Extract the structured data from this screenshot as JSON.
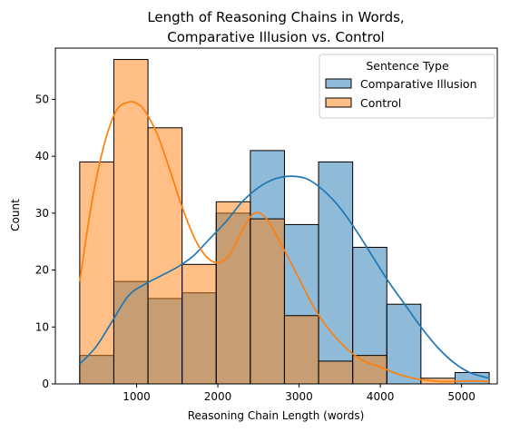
{
  "chart_data": {
    "type": "histogram",
    "title_lines": [
      "Length of Reasoning Chains in Words,",
      "Comparative Illusion vs. Control"
    ],
    "xlabel": "Reasoning Chain Length (words)",
    "ylabel": "Count",
    "xlim": [
      0,
      5440
    ],
    "ylim": [
      0,
      59
    ],
    "xticks": [
      1000,
      2000,
      3000,
      4000,
      5000
    ],
    "yticks": [
      0,
      10,
      20,
      30,
      40,
      50
    ],
    "bin_edges": [
      300,
      720,
      1140,
      1560,
      1980,
      2400,
      2820,
      3240,
      3660,
      4080,
      4500,
      4920,
      5340
    ],
    "grid": false,
    "legend": {
      "title": "Sentence Type",
      "placement": "top-right"
    },
    "series": [
      {
        "name": "Comparative Illusion",
        "color": "#1f77b4",
        "counts": [
          5,
          18,
          15,
          16,
          30,
          41,
          28,
          39,
          24,
          14,
          0,
          2
        ],
        "kde": {
          "x": [
            300,
            500,
            700,
            900,
            1100,
            1300,
            1500,
            1700,
            1900,
            2100,
            2300,
            2500,
            2700,
            2900,
            3100,
            3300,
            3500,
            3700,
            3900,
            4100,
            4300,
            4500,
            4700,
            4900,
            5100,
            5340
          ],
          "y": [
            3.5,
            6.5,
            11,
            15.5,
            17.5,
            19,
            20.5,
            22.5,
            25.5,
            28.5,
            32,
            34.5,
            36,
            36.5,
            36,
            34,
            31,
            27,
            22.5,
            18,
            14,
            10,
            6.5,
            3.8,
            2,
            1
          ]
        }
      },
      {
        "name": "Control",
        "color": "#ff7f0e",
        "counts": [
          39,
          57,
          45,
          21,
          32,
          29,
          12,
          4,
          5,
          0,
          1,
          0
        ],
        "kde": {
          "x": [
            300,
            450,
            600,
            750,
            900,
            1000,
            1100,
            1250,
            1400,
            1550,
            1700,
            1850,
            2000,
            2150,
            2300,
            2450,
            2600,
            2800,
            3000,
            3200,
            3400,
            3600,
            3800,
            4000,
            4200,
            4400,
            4600,
            4800,
            5000,
            5200,
            5340
          ],
          "y": [
            18,
            32,
            42,
            48,
            49.5,
            49.3,
            48,
            44,
            38,
            31.5,
            26,
            22.5,
            21.3,
            22.8,
            27,
            30,
            29,
            24,
            18.5,
            13,
            9,
            6,
            4,
            3,
            1.8,
            1,
            0.6,
            0.4,
            0.5,
            0.5,
            0.4
          ]
        }
      }
    ]
  }
}
